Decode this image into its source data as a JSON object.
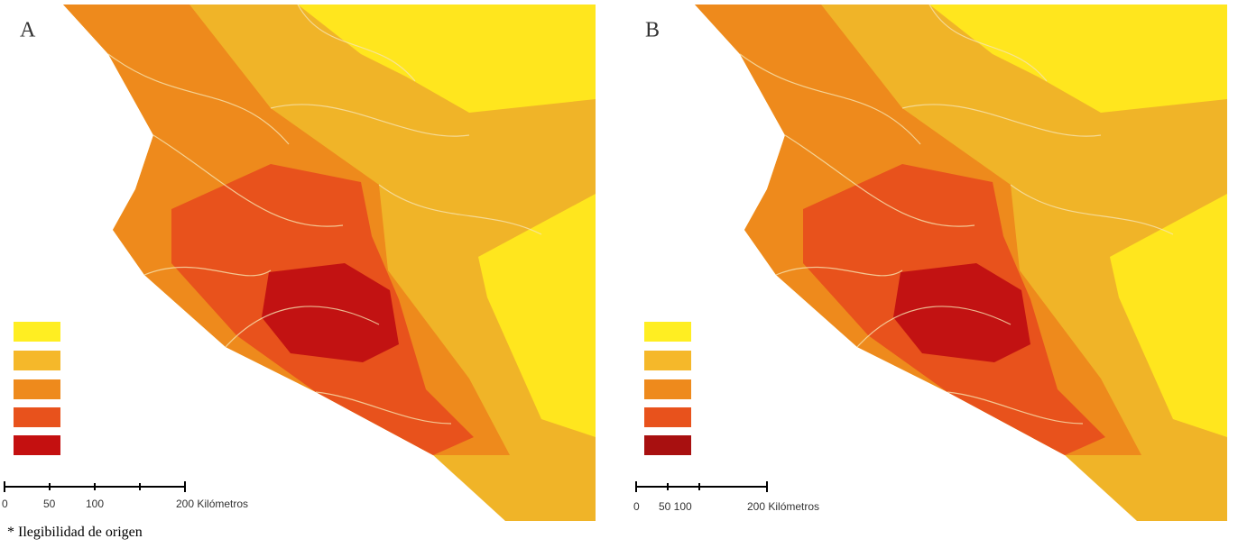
{
  "panels": [
    {
      "label": "A",
      "scale": {
        "labels": [
          "0",
          "50",
          "100",
          "200 Kilómetros"
        ]
      }
    },
    {
      "label": "B",
      "scale": {
        "labels": [
          "0",
          "50 100",
          "200 Kilómetros"
        ]
      }
    }
  ],
  "footnote": "* Ilegibilidad de origen"
}
